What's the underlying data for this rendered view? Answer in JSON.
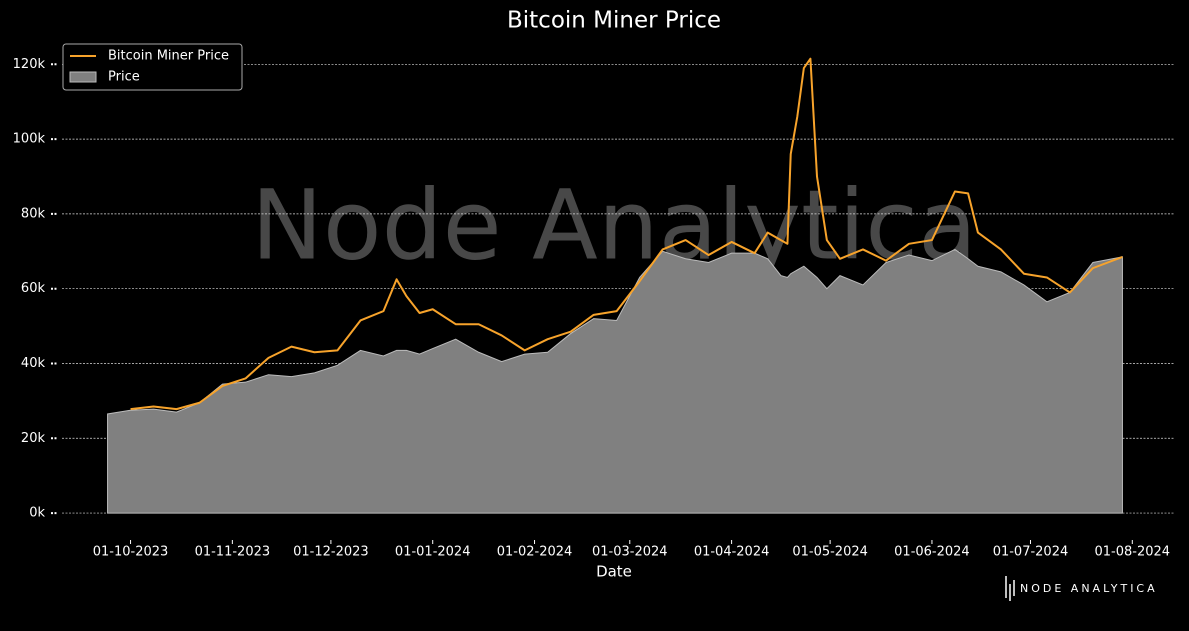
{
  "chart_data": {
    "type": "line",
    "title": "Bitcoin Miner Price",
    "x_label": "Date",
    "watermark": "Node Analytica",
    "brand": "NODE ANALYTICA",
    "legend": "upper left",
    "grid": true,
    "xlim": [
      "2023-09-08",
      "2024-08-14"
    ],
    "xticks": [
      {
        "value": "2023-10-01",
        "label": "01-10-2023"
      },
      {
        "value": "2023-11-01",
        "label": "01-11-2023"
      },
      {
        "value": "2023-12-01",
        "label": "01-12-2023"
      },
      {
        "value": "2024-01-01",
        "label": "01-01-2024"
      },
      {
        "value": "2024-02-01",
        "label": "01-02-2024"
      },
      {
        "value": "2024-03-01",
        "label": "01-03-2024"
      },
      {
        "value": "2024-04-01",
        "label": "01-04-2024"
      },
      {
        "value": "2024-05-01",
        "label": "01-05-2024"
      },
      {
        "value": "2024-06-01",
        "label": "01-06-2024"
      },
      {
        "value": "2024-07-01",
        "label": "01-07-2024"
      },
      {
        "value": "2024-08-01",
        "label": "01-08-2024"
      }
    ],
    "ylim": [
      -7200,
      126500
    ],
    "yticks": [
      {
        "value": 0,
        "label": "0k"
      },
      {
        "value": 20000,
        "label": "20k"
      },
      {
        "value": 40000,
        "label": "40k"
      },
      {
        "value": 60000,
        "label": "60k"
      },
      {
        "value": 80000,
        "label": "80k"
      },
      {
        "value": 100000,
        "label": "100k"
      },
      {
        "value": 120000,
        "label": "120k"
      }
    ],
    "x": [
      "2023-09-24",
      "2023-10-01",
      "2023-10-08",
      "2023-10-15",
      "2023-10-22",
      "2023-10-29",
      "2023-11-05",
      "2023-11-12",
      "2023-11-19",
      "2023-11-26",
      "2023-12-03",
      "2023-12-10",
      "2023-12-17",
      "2023-12-21",
      "2023-12-24",
      "2023-12-28",
      "2024-01-01",
      "2024-01-08",
      "2024-01-15",
      "2024-01-22",
      "2024-01-29",
      "2024-02-05",
      "2024-02-12",
      "2024-02-19",
      "2024-02-26",
      "2024-03-04",
      "2024-03-11",
      "2024-03-18",
      "2024-03-25",
      "2024-04-01",
      "2024-04-08",
      "2024-04-12",
      "2024-04-16",
      "2024-04-18",
      "2024-04-19",
      "2024-04-21",
      "2024-04-23",
      "2024-04-25",
      "2024-04-27",
      "2024-04-30",
      "2024-05-04",
      "2024-05-11",
      "2024-05-18",
      "2024-05-25",
      "2024-06-01",
      "2024-06-08",
      "2024-06-12",
      "2024-06-15",
      "2024-06-22",
      "2024-06-29",
      "2024-07-06",
      "2024-07-13",
      "2024-07-20",
      "2024-07-29"
    ],
    "series": [
      {
        "name": "Bitcoin Miner Price",
        "kind": "line",
        "color": "#f7a32b",
        "values": [
          null,
          27800,
          28500,
          27800,
          29500,
          34000,
          36000,
          41500,
          44500,
          43000,
          43500,
          51500,
          54000,
          62500,
          58000,
          53500,
          54500,
          50500,
          50500,
          47500,
          43500,
          46500,
          48500,
          53000,
          54000,
          62000,
          70500,
          73000,
          69000,
          72500,
          69500,
          75000,
          73000,
          72000,
          96000,
          106000,
          119000,
          121500,
          90000,
          73000,
          68000,
          70500,
          67500,
          72000,
          73000,
          86000,
          85500,
          75000,
          70500,
          64000,
          63000,
          59000,
          65500,
          68500
        ]
      },
      {
        "name": "Price",
        "kind": "area",
        "color": "#808080",
        "values": [
          26500,
          27500,
          27800,
          27000,
          29500,
          34500,
          35000,
          37000,
          36500,
          37500,
          39500,
          43500,
          42000,
          43500,
          43500,
          42500,
          44000,
          46500,
          43000,
          40500,
          42500,
          43000,
          48000,
          52000,
          51500,
          63000,
          70000,
          68000,
          67000,
          69500,
          69500,
          68000,
          63500,
          63000,
          64000,
          65000,
          66000,
          64500,
          63000,
          60000,
          63500,
          61000,
          67000,
          69000,
          67500,
          70500,
          68000,
          66000,
          64500,
          61000,
          56500,
          59000,
          67000,
          68500
        ]
      }
    ]
  }
}
